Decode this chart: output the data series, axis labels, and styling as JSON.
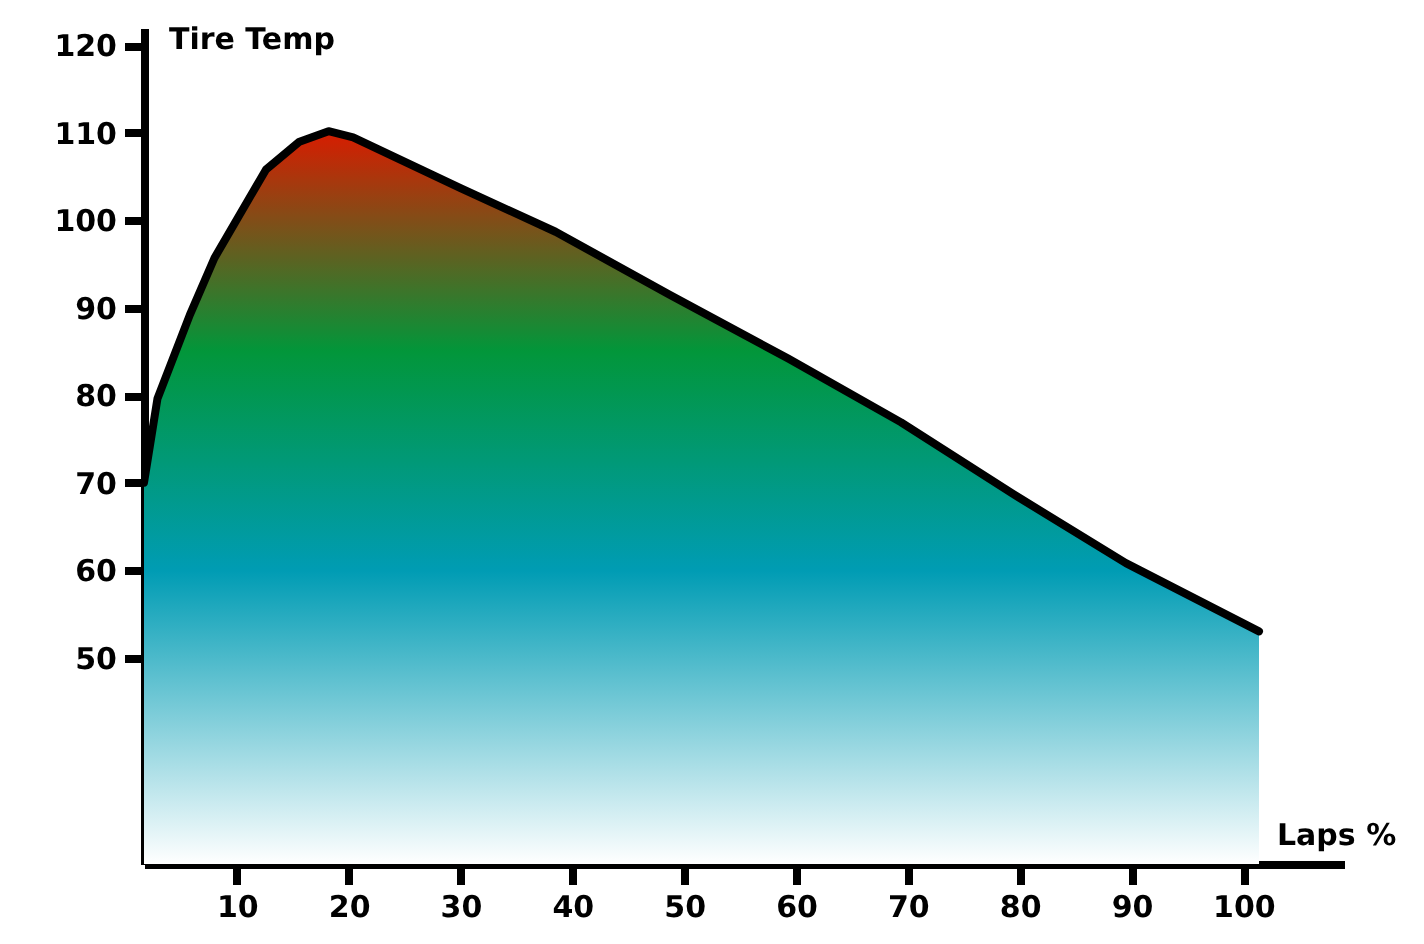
{
  "chart_data": {
    "type": "area",
    "xlabel": "Laps %",
    "ylabel": "Tire Temp",
    "x": [
      1.7,
      2.9,
      5.8,
      8,
      12.6,
      15.6,
      18.2,
      20.4,
      30,
      38.5,
      48.7,
      59.3,
      69.4,
      79.3,
      89.5,
      101.4
    ],
    "series": [
      {
        "color": "#02963a",
        "values": [
          70,
          79.6,
          89.2,
          95.7,
          105.8,
          109,
          110.2,
          109.5,
          103.7,
          98.7,
          91.5,
          84.2,
          76.9,
          68.8,
          60.8,
          53
        ]
      }
    ],
    "xlim": [
      1.7,
      109
    ],
    "ylim": [
      26.4,
      122
    ],
    "xticks": [
      10,
      20,
      30,
      40,
      50,
      60,
      70,
      80,
      90,
      100
    ],
    "yticks": [
      50,
      60,
      70,
      80,
      90,
      100,
      110,
      120
    ],
    "grid": false
  }
}
